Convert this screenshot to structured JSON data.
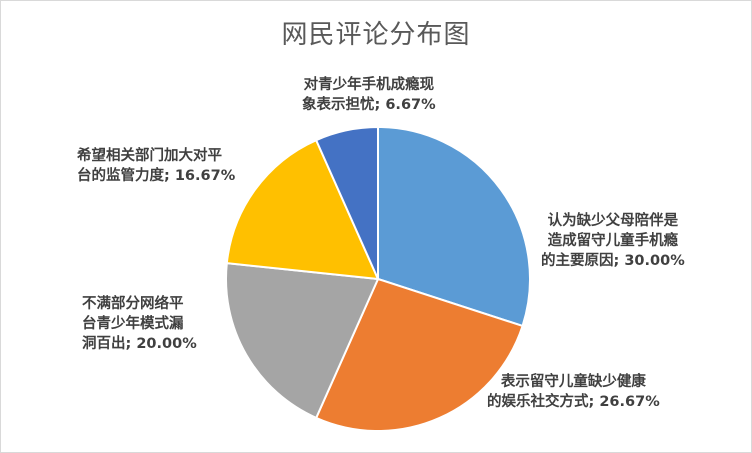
{
  "chart_data": {
    "type": "pie",
    "title": "网民评论分布图",
    "start_angle_deg": 0,
    "direction": "clockwise",
    "slices": [
      {
        "label": "认为缺少父母陪伴是造成留守儿童手机瘾的主要原因",
        "value": 30.0,
        "display": "认为缺少父母陪伴是\n造成留守儿童手机瘾\n的主要原因; 30.00%",
        "color": "#5B9BD5"
      },
      {
        "label": "表示留守儿童缺少健康的娱乐社交方式",
        "value": 26.67,
        "display": "表示留守儿童缺少健康\n的娱乐社交方式; 26.67%",
        "color": "#ED7D31"
      },
      {
        "label": "不满部分网络平台青少年模式漏洞百出",
        "value": 20.0,
        "display": "不满部分网络平\n台青少年模式漏\n洞百出; 20.00%",
        "color": "#A5A5A5"
      },
      {
        "label": "希望相关部门加大对平台的监管力度",
        "value": 16.67,
        "display": "希望相关部门加大对平\n台的监管力度; 16.67%",
        "color": "#FFC000"
      },
      {
        "label": "对青少年手机成瘾现象表示担忧",
        "value": 6.67,
        "display": "对青少年手机成瘾现\n象表示担忧; 6.67%",
        "color": "#4472C4"
      }
    ],
    "legend": "none"
  }
}
